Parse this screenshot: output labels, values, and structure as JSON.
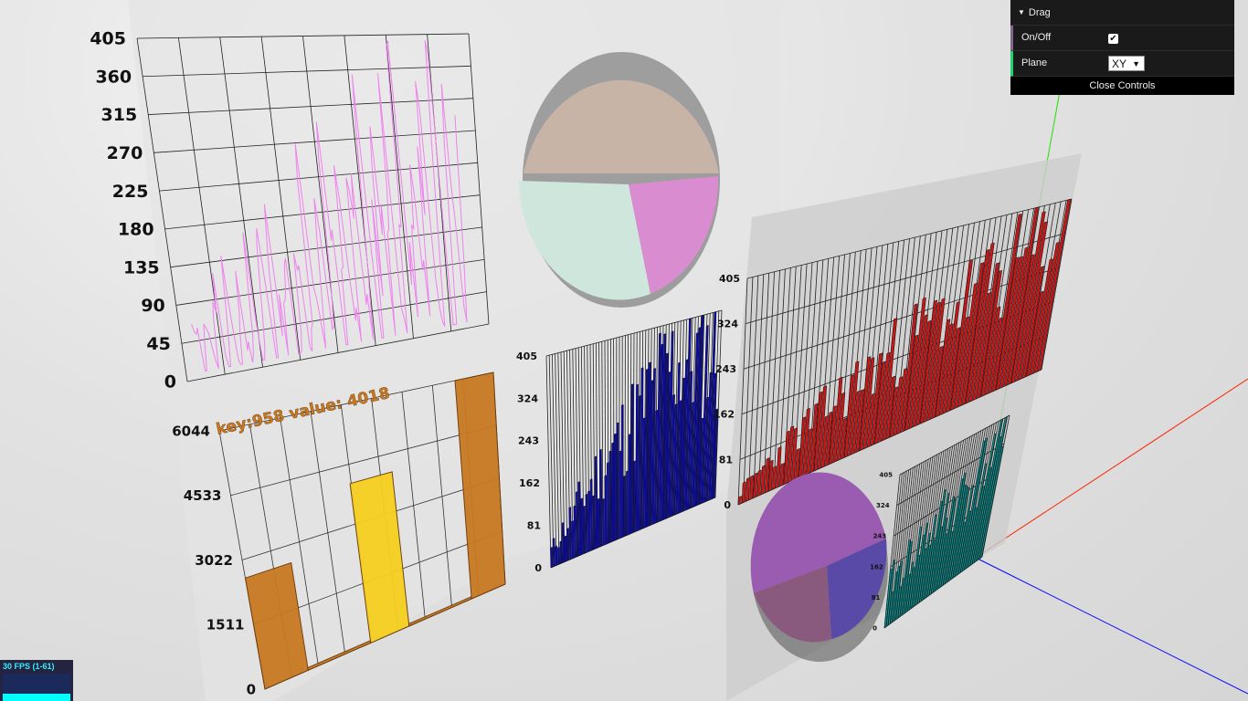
{
  "scene": {
    "line_chart": {
      "y_ticks": [
        "405",
        "360",
        "315",
        "270",
        "225",
        "180",
        "135",
        "90",
        "45",
        "0"
      ],
      "series_color": "#ee82ee"
    },
    "bar_chart": {
      "tooltip": "key:958 value: 4018",
      "y_ticks": [
        "6044",
        "4533",
        "3022",
        "1511",
        "0"
      ],
      "bar_color": "#c87922",
      "highlight_color": "#f5d020"
    },
    "pie_top": {
      "colors": [
        "#c8b4a6",
        "#cfe6dc",
        "#d98ccf"
      ]
    },
    "blue_histogram": {
      "y_ticks": [
        "405",
        "324",
        "243",
        "162",
        "81",
        "0"
      ],
      "color": "#0b0bb0"
    },
    "red_histogram": {
      "y_ticks": [
        "405",
        "324",
        "243",
        "162",
        "81",
        "0"
      ],
      "color": "#c21818"
    },
    "pie_bottom": {
      "colors": [
        "#9a5cb0",
        "#5a4aa8",
        "#8a5a7e"
      ]
    },
    "teal_histogram": {
      "y_ticks": [
        "405",
        "324",
        "243",
        "162",
        "81",
        "0"
      ],
      "color": "#0a9a9a"
    },
    "axes": {
      "x_color": "#ff2200",
      "y_color": "#22dd00",
      "z_color": "#0000ff"
    }
  },
  "gui": {
    "folder_title": "Drag",
    "rows": [
      {
        "label": "On/Off",
        "type": "checkbox",
        "checked": true
      },
      {
        "label": "Plane",
        "type": "select",
        "value": "XY"
      }
    ],
    "close_label": "Close Controls"
  },
  "stats": {
    "fps_text": "30 FPS (1-61)"
  }
}
